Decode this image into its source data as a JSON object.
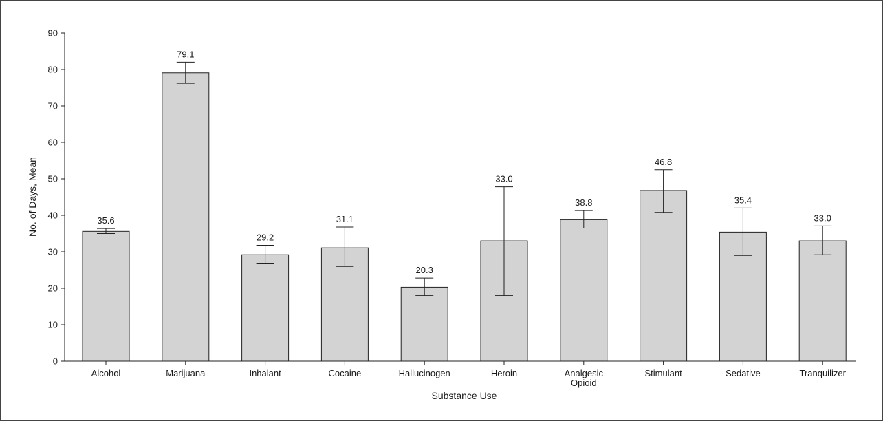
{
  "chart_data": {
    "type": "bar",
    "title": "",
    "xlabel": "Substance Use",
    "ylabel": "No. of Days, Mean",
    "ylim": [
      0,
      90
    ],
    "yticks": [
      0,
      10,
      20,
      30,
      40,
      50,
      60,
      70,
      80,
      90
    ],
    "grid": false,
    "categories": [
      [
        "Alcohol"
      ],
      [
        "Marijuana"
      ],
      [
        "Inhalant"
      ],
      [
        "Cocaine"
      ],
      [
        "Hallucinogen"
      ],
      [
        "Heroin"
      ],
      [
        "Analgesic",
        "Opioid"
      ],
      [
        "Stimulant"
      ],
      [
        "Sedative"
      ],
      [
        "Tranquilizer"
      ]
    ],
    "values": [
      35.6,
      79.1,
      29.2,
      31.1,
      20.3,
      33.0,
      38.8,
      46.8,
      35.4,
      33.0
    ],
    "value_labels": [
      "35.6",
      "79.1",
      "29.2",
      "31.1",
      "20.3",
      "33.0",
      "38.8",
      "46.8",
      "35.4",
      "33.0"
    ],
    "error_low": [
      35.0,
      76.2,
      26.7,
      26.0,
      18.0,
      18.0,
      36.5,
      40.8,
      29.0,
      29.2
    ],
    "error_high": [
      36.4,
      82.0,
      31.8,
      36.8,
      22.8,
      47.8,
      41.3,
      52.5,
      42.0,
      37.1
    ],
    "bar_color": "#d3d3d3",
    "bar_stroke": "#222222"
  }
}
